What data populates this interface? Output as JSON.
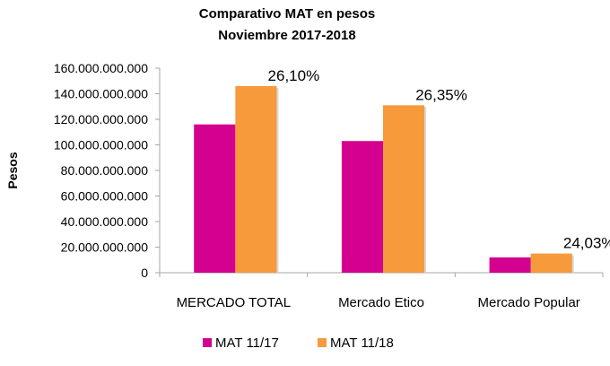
{
  "chart_data": {
    "type": "bar",
    "title_line1": "Comparativo MAT en pesos",
    "title_line2": "Noviembre 2017-2018",
    "ylabel": "Pesos",
    "xlabel": "",
    "ylim": [
      0,
      160000000000
    ],
    "yticks": [
      0,
      20000000000,
      40000000000,
      60000000000,
      80000000000,
      100000000000,
      120000000000,
      140000000000,
      160000000000
    ],
    "ytick_labels": [
      "0",
      "20.000.000.000",
      "40.000.000.000",
      "60.000.000.000",
      "80.000.000.000",
      "100.000.000.000",
      "120.000.000.000",
      "140.000.000.000",
      "160.000.000.000"
    ],
    "categories": [
      "MERCADO TOTAL",
      "Mercado Etico",
      "Mercado Popular"
    ],
    "series": [
      {
        "name": "MAT 11/17",
        "color": "#d4008f",
        "values": [
          116000000000,
          103000000000,
          12000000000
        ]
      },
      {
        "name": "MAT 11/18",
        "color": "#f79a3c",
        "values": [
          146000000000,
          131000000000,
          15000000000
        ]
      }
    ],
    "annotations": [
      "26,10%",
      "26,35%",
      "24,03%"
    ],
    "grid": false,
    "legend_position": "bottom"
  }
}
